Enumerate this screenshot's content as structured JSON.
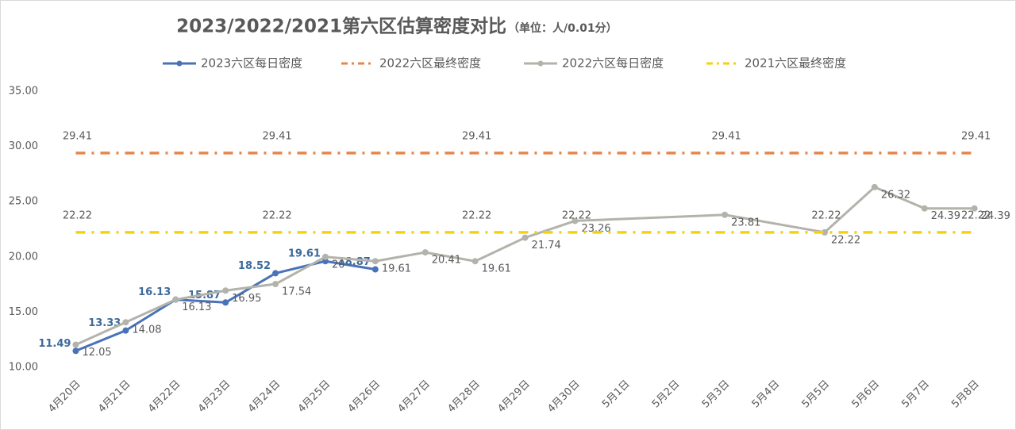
{
  "chart_data": {
    "type": "line",
    "title": "2023/2022/2021第六区估算密度对比",
    "subtitle": "（单位：人/0.01分）",
    "categories": [
      "4月20日",
      "4月21日",
      "4月22日",
      "4月23日",
      "4月24日",
      "4月25日",
      "4月26日",
      "4月27日",
      "4月28日",
      "4月29日",
      "4月30日",
      "5月1日",
      "5月2日",
      "5月3日",
      "5月4日",
      "5月5日",
      "5月6日",
      "5月7日",
      "5月8日"
    ],
    "ylim": [
      10,
      35
    ],
    "yticks": [
      {
        "value": 10,
        "label": "10.00"
      },
      {
        "value": 15,
        "label": "15.00"
      },
      {
        "value": 20,
        "label": "20.00"
      },
      {
        "value": 25,
        "label": "25.00"
      },
      {
        "value": 30,
        "label": "30.00"
      },
      {
        "value": 35,
        "label": "35.00"
      }
    ],
    "grid": false,
    "legend": "top",
    "series": [
      {
        "name": "2023六区每日密度",
        "color": "#4a72b8",
        "style": "solid",
        "markers": true,
        "label_style": "bold-left",
        "values": [
          11.49,
          13.33,
          16.13,
          15.87,
          18.52,
          19.61,
          18.87,
          null,
          null,
          null,
          null,
          null,
          null,
          null,
          null,
          null,
          null,
          null,
          null
        ]
      },
      {
        "name": "2022六区最终密度",
        "color": "#e8864a",
        "style": "dashdot",
        "markers": false,
        "label_style": "above",
        "labeled_indices": [
          0,
          4,
          8,
          13,
          18
        ],
        "values": [
          29.41,
          29.41,
          29.41,
          29.41,
          29.41,
          29.41,
          29.41,
          29.41,
          29.41,
          29.41,
          29.41,
          29.41,
          29.41,
          29.41,
          29.41,
          29.41,
          29.41,
          29.41,
          29.41
        ]
      },
      {
        "name": "2022六区每日密度",
        "color": "#b3b3ab",
        "style": "solid",
        "markers": true,
        "label_style": "right",
        "connect_gaps": true,
        "values": [
          12.05,
          14.08,
          16.13,
          16.95,
          17.54,
          20.0,
          19.61,
          20.41,
          19.61,
          21.74,
          23.26,
          null,
          null,
          23.81,
          null,
          22.22,
          26.32,
          24.39,
          24.39
        ]
      },
      {
        "name": "2021六区最终密度",
        "color": "#f5d20a",
        "style": "dashdot",
        "markers": false,
        "label_style": "above",
        "labeled_indices": [
          0,
          4,
          8,
          10,
          15,
          18
        ],
        "values": [
          22.22,
          22.22,
          22.22,
          22.22,
          22.22,
          22.22,
          22.22,
          22.22,
          22.22,
          22.22,
          22.22,
          22.22,
          22.22,
          22.22,
          22.22,
          22.22,
          22.22,
          22.22,
          22.22
        ]
      }
    ]
  }
}
